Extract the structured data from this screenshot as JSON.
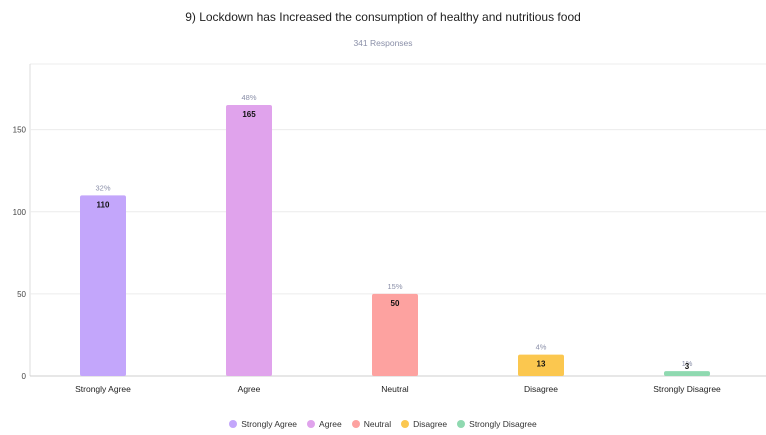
{
  "chart_data": {
    "type": "bar",
    "title": "9) Lockdown has Increased the consumption of healthy and nutritious food",
    "subtitle": "341 Responses",
    "categories": [
      "Strongly Agree",
      "Agree",
      "Neutral",
      "Disagree",
      "Strongly Disagree"
    ],
    "values": [
      110,
      165,
      50,
      13,
      3
    ],
    "percent_labels": [
      "32%",
      "48%",
      "15%",
      "4%",
      "1%"
    ],
    "colors": [
      "#c3a6fb",
      "#e0a3ec",
      "#fda2a0",
      "#fbc74f",
      "#8fd9b0"
    ],
    "ylim": [
      0,
      190
    ],
    "yticks": [
      0,
      50,
      100,
      150
    ],
    "grid": true,
    "legend_position": "bottom"
  }
}
